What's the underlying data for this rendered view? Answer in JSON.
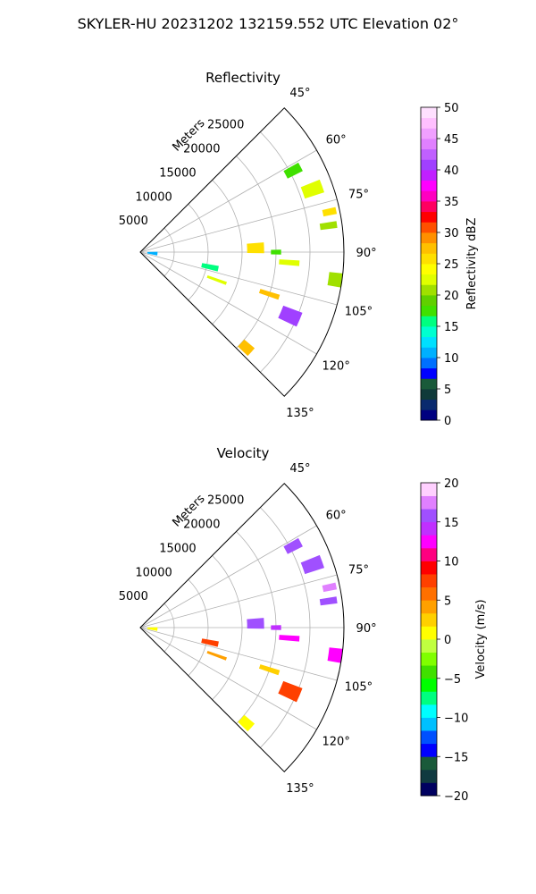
{
  "figure": {
    "title": "SKYLER-HU  20231202  132159.552 UTC Elevation 02°"
  },
  "colors": {
    "reflectivity_scale": [
      "#000080",
      "#0a2a6e",
      "#103a3a",
      "#1a5a3a",
      "#0000ff",
      "#0070ff",
      "#00b0ff",
      "#00e0ff",
      "#00ffd0",
      "#00ff80",
      "#40e000",
      "#60d000",
      "#a0e000",
      "#e0ff00",
      "#ffff00",
      "#ffe000",
      "#ffc000",
      "#ff9000",
      "#ff5000",
      "#ff0000",
      "#ff0060",
      "#ff00c0",
      "#ff00ff",
      "#c020ff",
      "#a040ff",
      "#c060ff",
      "#e080ff",
      "#f0a0ff",
      "#ffc0ff",
      "#ffe0ff"
    ],
    "velocity_scale": [
      "#000060",
      "#103a40",
      "#1a5a3a",
      "#0000ff",
      "#0050ff",
      "#00c0ff",
      "#00ffff",
      "#00ff80",
      "#00ff00",
      "#40e000",
      "#80ff00",
      "#c0ff40",
      "#ffff00",
      "#ffd000",
      "#ffa000",
      "#ff7000",
      "#ff4000",
      "#ff0000",
      "#ff0080",
      "#ff00ff",
      "#c030ff",
      "#a050ff",
      "#e080ff",
      "#ffd0ff"
    ]
  },
  "chart_data": [
    {
      "type": "heatmap",
      "title": "Reflectivity",
      "radial_label": "Meters",
      "radial_ticks": [
        "5000",
        "10000",
        "15000",
        "20000",
        "25000"
      ],
      "radial_tick_values": [
        5000,
        10000,
        15000,
        20000,
        25000
      ],
      "rlim": [
        0,
        30000
      ],
      "angle_ticks": [
        "45°",
        "60°",
        "75°",
        "90°",
        "105°",
        "120°",
        "135°"
      ],
      "angle_tick_values": [
        45,
        60,
        75,
        90,
        105,
        120,
        135
      ],
      "theta_range": [
        45,
        135
      ],
      "colorbar": {
        "label": "Reflectivity dBZ",
        "ticks": [
          "0",
          "5",
          "10",
          "15",
          "20",
          "25",
          "30",
          "35",
          "40",
          "45",
          "50"
        ],
        "tick_values": [
          0,
          5,
          10,
          15,
          20,
          25,
          30,
          35,
          40,
          45,
          50
        ],
        "range": [
          0,
          50
        ]
      },
      "cells": [
        {
          "az": 62,
          "r": 25500,
          "dr": 2500,
          "daz": 3,
          "v": 18
        },
        {
          "az": 70,
          "r": 27000,
          "dr": 3000,
          "daz": 4,
          "v": 22
        },
        {
          "az": 78,
          "r": 28500,
          "dr": 2000,
          "daz": 2,
          "v": 25
        },
        {
          "az": 82,
          "r": 28000,
          "dr": 2500,
          "daz": 2,
          "v": 20
        },
        {
          "az": 88,
          "r": 17000,
          "dr": 2500,
          "daz": 5,
          "v": 25
        },
        {
          "az": 90,
          "r": 20000,
          "dr": 1500,
          "daz": 2,
          "v": 18
        },
        {
          "az": 94,
          "r": 22000,
          "dr": 3000,
          "daz": 2,
          "v": 22
        },
        {
          "az": 98,
          "r": 29000,
          "dr": 2000,
          "daz": 4,
          "v": 20
        },
        {
          "az": 102,
          "r": 10500,
          "dr": 2500,
          "daz": 4,
          "v": 16
        },
        {
          "az": 110,
          "r": 12000,
          "dr": 3000,
          "daz": 2,
          "v": 22
        },
        {
          "az": 108,
          "r": 20000,
          "dr": 3000,
          "daz": 2,
          "v": 28
        },
        {
          "az": 113,
          "r": 24000,
          "dr": 3000,
          "daz": 5,
          "v": 40
        },
        {
          "az": 132,
          "r": 21000,
          "dr": 2000,
          "daz": 4,
          "v": 28
        },
        {
          "az": 95,
          "r": 1800,
          "dr": 1500,
          "daz": 12,
          "v": 10
        }
      ]
    },
    {
      "type": "heatmap",
      "title": "Velocity",
      "radial_label": "Meters",
      "radial_ticks": [
        "5000",
        "10000",
        "15000",
        "20000",
        "25000"
      ],
      "radial_tick_values": [
        5000,
        10000,
        15000,
        20000,
        25000
      ],
      "rlim": [
        0,
        30000
      ],
      "angle_ticks": [
        "45°",
        "60°",
        "75°",
        "90°",
        "105°",
        "120°",
        "135°"
      ],
      "angle_tick_values": [
        45,
        60,
        75,
        90,
        105,
        120,
        135
      ],
      "theta_range": [
        45,
        135
      ],
      "colorbar": {
        "label": "Velocity (m/s)",
        "ticks": [
          "−20",
          "−15",
          "−10",
          "−5",
          "0",
          "5",
          "10",
          "15",
          "20"
        ],
        "tick_values": [
          -20,
          -15,
          -10,
          -5,
          0,
          5,
          10,
          15,
          20
        ],
        "range": [
          -20,
          20
        ]
      },
      "cells": [
        {
          "az": 62,
          "r": 25500,
          "dr": 2500,
          "daz": 3,
          "v": 16
        },
        {
          "az": 70,
          "r": 27000,
          "dr": 3000,
          "daz": 4,
          "v": 15
        },
        {
          "az": 78,
          "r": 28500,
          "dr": 2000,
          "daz": 2,
          "v": 17
        },
        {
          "az": 82,
          "r": 28000,
          "dr": 2500,
          "daz": 2,
          "v": 16
        },
        {
          "az": 88,
          "r": 17000,
          "dr": 2500,
          "daz": 5,
          "v": 15
        },
        {
          "az": 90,
          "r": 20000,
          "dr": 1500,
          "daz": 2,
          "v": 14
        },
        {
          "az": 94,
          "r": 22000,
          "dr": 3000,
          "daz": 2,
          "v": 13
        },
        {
          "az": 98,
          "r": 29000,
          "dr": 2000,
          "daz": 4,
          "v": 13
        },
        {
          "az": 102,
          "r": 10500,
          "dr": 2500,
          "daz": 4,
          "v": 7
        },
        {
          "az": 110,
          "r": 12000,
          "dr": 3000,
          "daz": 2,
          "v": 4
        },
        {
          "az": 108,
          "r": 20000,
          "dr": 3000,
          "daz": 2,
          "v": 2
        },
        {
          "az": 113,
          "r": 24000,
          "dr": 3000,
          "daz": 5,
          "v": 7
        },
        {
          "az": 132,
          "r": 21000,
          "dr": 2000,
          "daz": 4,
          "v": 1
        },
        {
          "az": 95,
          "r": 1800,
          "dr": 1500,
          "daz": 12,
          "v": 1
        }
      ]
    }
  ]
}
